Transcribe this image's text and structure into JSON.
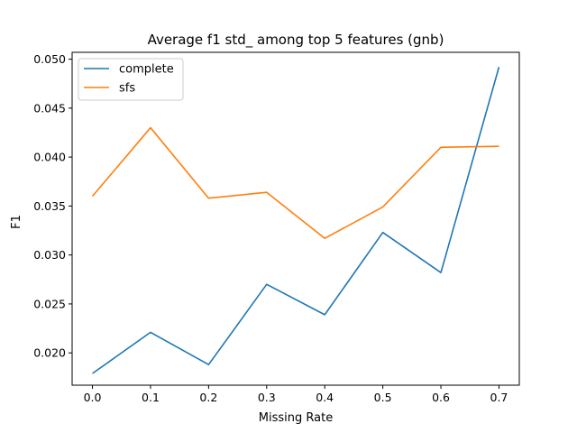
{
  "chart_data": {
    "type": "line",
    "title": "Average f1 std_ among top 5 features (gnb)",
    "xlabel": "Missing Rate",
    "ylabel": "F1",
    "x": [
      0.0,
      0.1,
      0.2,
      0.3,
      0.4,
      0.5,
      0.6,
      0.7
    ],
    "xticks": [
      0.0,
      0.1,
      0.2,
      0.3,
      0.4,
      0.5,
      0.6,
      0.7
    ],
    "xtick_labels": [
      "0.0",
      "0.1",
      "0.2",
      "0.3",
      "0.4",
      "0.5",
      "0.6",
      "0.7"
    ],
    "yticks": [
      0.02,
      0.025,
      0.03,
      0.035,
      0.04,
      0.045,
      0.05
    ],
    "ytick_labels": [
      "0.020",
      "0.025",
      "0.030",
      "0.035",
      "0.040",
      "0.045",
      "0.050"
    ],
    "xlim": [
      -0.035,
      0.735
    ],
    "ylim": [
      0.0167,
      0.0507
    ],
    "grid": false,
    "legend_position": "top-left",
    "series": [
      {
        "name": "complete",
        "color": "#1f77b4",
        "values": [
          0.0179,
          0.0221,
          0.0188,
          0.027,
          0.0239,
          0.0323,
          0.0282,
          0.0492
        ]
      },
      {
        "name": "sfs",
        "color": "#ff7f0e",
        "values": [
          0.036,
          0.043,
          0.0358,
          0.0364,
          0.0317,
          0.0349,
          0.041,
          0.0411
        ]
      }
    ]
  }
}
